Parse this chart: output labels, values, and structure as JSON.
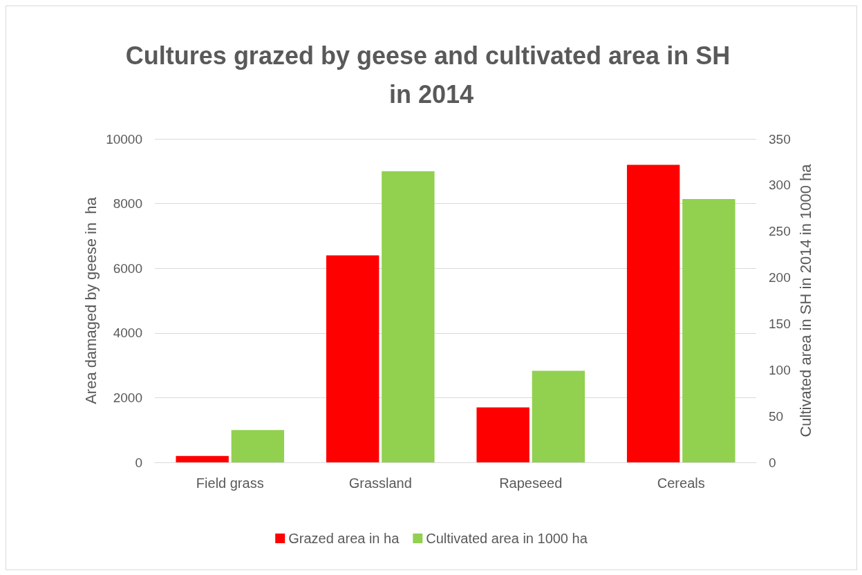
{
  "chart_data": {
    "type": "bar",
    "title": "Cultures grazed by geese and cultivated area in SH in 2014",
    "ylabel": "Area damaged by geese in  ha",
    "y2label": "Cultivated area in SH in 2014 in 1000 ha",
    "categories": [
      "Field grass",
      "Grassland",
      "Rapeseed",
      "Cereals"
    ],
    "series": [
      {
        "name": "Grazed area in ha",
        "color": "#ff0000",
        "values": [
          200,
          6400,
          1700,
          9200
        ]
      },
      {
        "name": "Cultivated area in 1000 ha",
        "color": "#92d050",
        "values": [
          35,
          315,
          99,
          285
        ],
        "axis": "y2"
      }
    ],
    "ylim": [
      0,
      10000
    ],
    "yticks": [
      0,
      2000,
      4000,
      6000,
      8000,
      10000
    ],
    "y2lim": [
      0,
      350
    ],
    "y2ticks": [
      0,
      50,
      100,
      150,
      200,
      250,
      300,
      350
    ],
    "grid": "y",
    "legend": "bottom"
  }
}
